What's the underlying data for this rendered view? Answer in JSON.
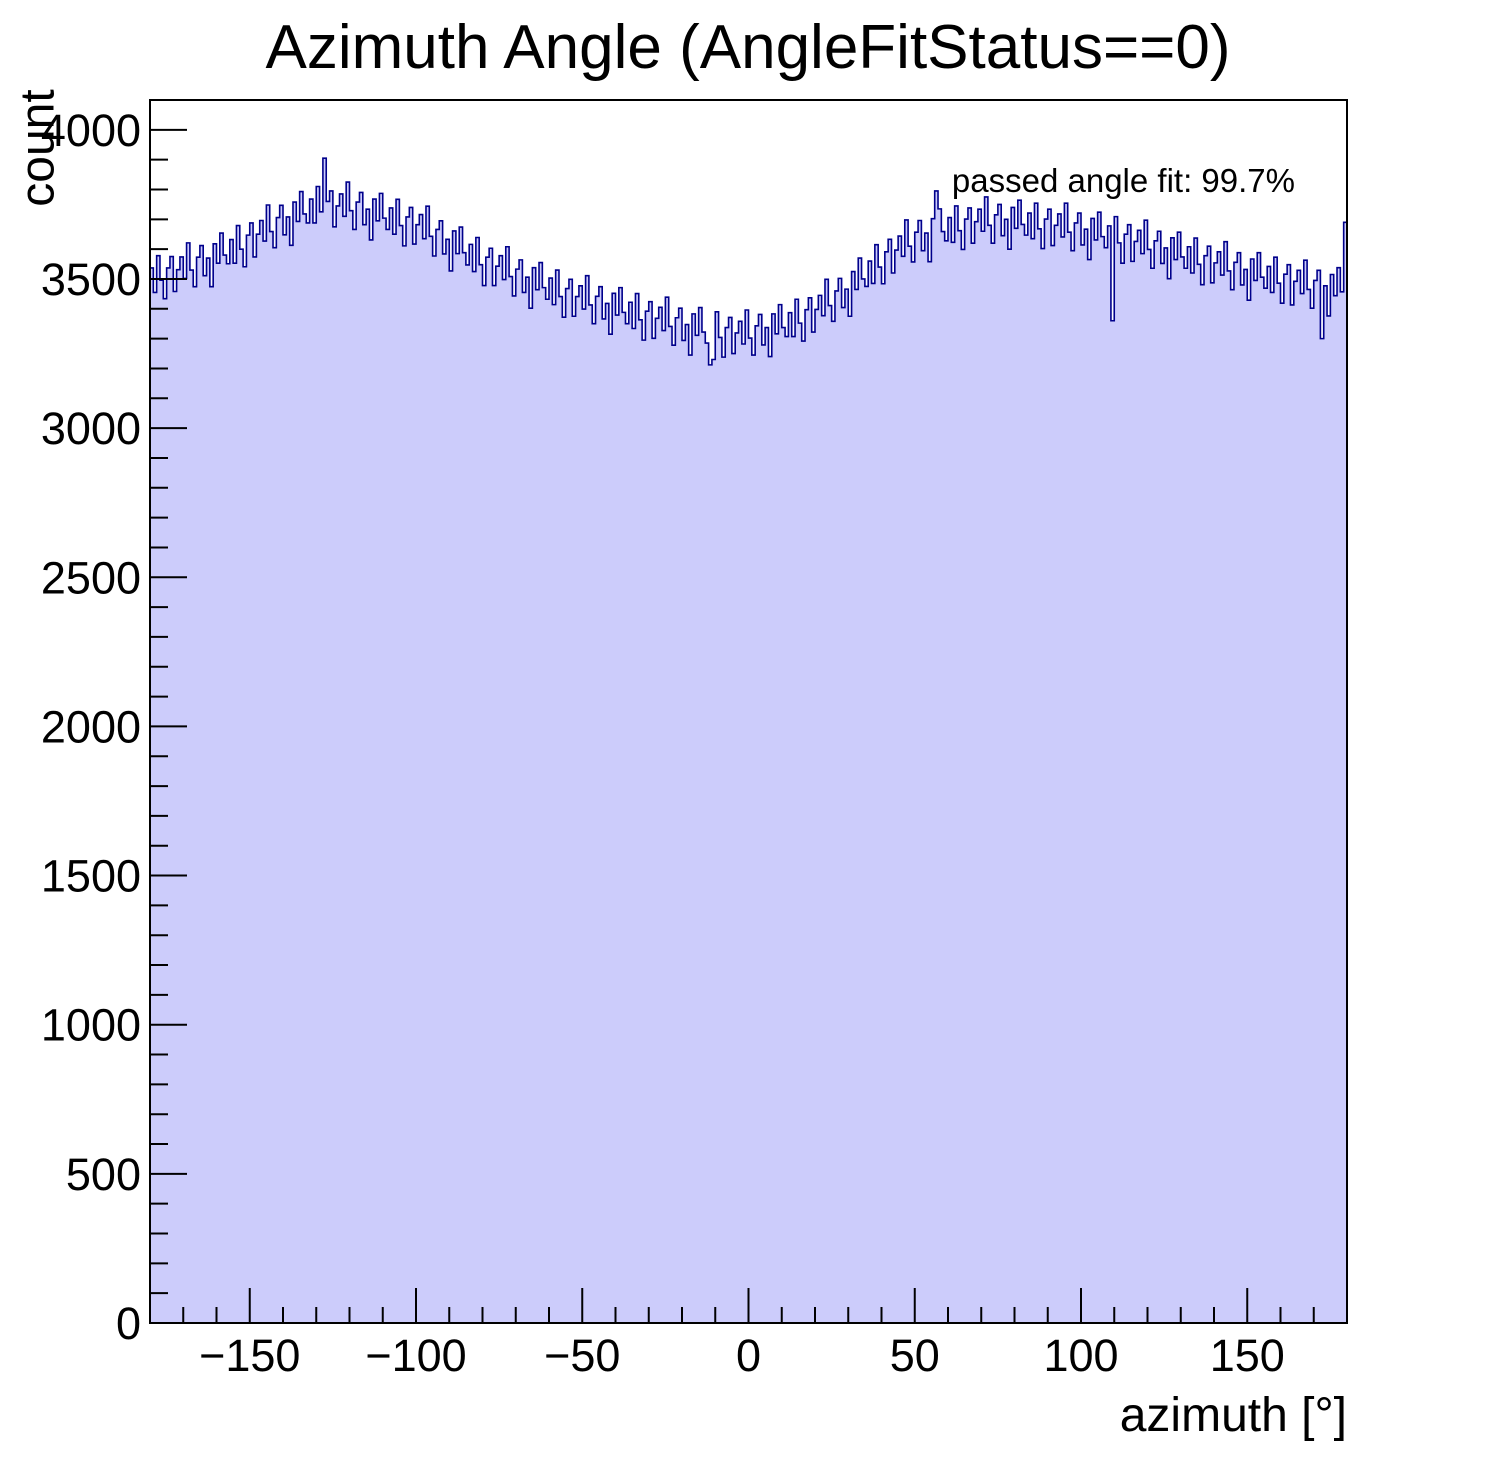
{
  "header": {
    "title": "Azimuth Angle (AngleFitStatus==0)"
  },
  "chart_data": {
    "type": "bar",
    "subtype": "filled-step-histogram",
    "title": "Azimuth Angle (AngleFitStatus==0)",
    "xlabel": "azimuth [°]",
    "ylabel": "count",
    "annotation": "passed angle fit: 99.7%",
    "xlim": [
      -180,
      180
    ],
    "ylim": [
      0,
      4100
    ],
    "n_bins": 360,
    "bin_width": 1,
    "x_major_ticks": [
      -150,
      -100,
      -50,
      0,
      50,
      100,
      150
    ],
    "x_minor_step": 10,
    "y_major_ticks": [
      0,
      500,
      1000,
      1500,
      2000,
      2500,
      3000,
      3500,
      4000
    ],
    "y_minor_step": 100,
    "grid": false,
    "legend_position": "none",
    "colors": {
      "fill": "#ccccfb",
      "line": "#00008b",
      "axis": "#000000"
    },
    "values": [
      3537,
      3455,
      3578,
      3496,
      3434,
      3537,
      3575,
      3458,
      3531,
      3574,
      3502,
      3621,
      3530,
      3474,
      3573,
      3612,
      3511,
      3570,
      3474,
      3618,
      3553,
      3654,
      3580,
      3551,
      3632,
      3553,
      3679,
      3600,
      3541,
      3647,
      3688,
      3574,
      3650,
      3696,
      3627,
      3748,
      3659,
      3605,
      3706,
      3747,
      3648,
      3708,
      3613,
      3758,
      3693,
      3793,
      3718,
      3688,
      3768,
      3688,
      3810,
      3725,
      3905,
      3760,
      3795,
      3675,
      3745,
      3785,
      3710,
      3825,
      3729,
      3666,
      3758,
      3790,
      3682,
      3734,
      3631,
      3768,
      3695,
      3787,
      3704,
      3666,
      3738,
      3650,
      3767,
      3679,
      3611,
      3708,
      3740,
      3617,
      3682,
      3716,
      3635,
      3744,
      3643,
      3577,
      3666,
      3695,
      3584,
      3633,
      3527,
      3661,
      3585,
      3674,
      3588,
      3547,
      3616,
      3525,
      3639,
      3548,
      3478,
      3573,
      3603,
      3478,
      3543,
      3578,
      3498,
      3608,
      3508,
      3443,
      3533,
      3564,
      3455,
      3506,
      3402,
      3538,
      3464,
      3555,
      3471,
      3432,
      3503,
      3414,
      3530,
      3441,
      3372,
      3468,
      3499,
      3375,
      3441,
      3477,
      3399,
      3511,
      3413,
      3350,
      3442,
      3474,
      3366,
      3418,
      3315,
      3452,
      3379,
      3471,
      3388,
      3350,
      3422,
      3334,
      3451,
      3363,
      3295,
      3392,
      3424,
      3301,
      3368,
      3405,
      3327,
      3439,
      3341,
      3278,
      3370,
      3402,
      3294,
      3347,
      3245,
      3383,
      3311,
      3404,
      3322,
      3285,
      3212,
      3230,
      3390,
      3304,
      3238,
      3337,
      3371,
      3250,
      3319,
      3358,
      3282,
      3396,
      3302,
      3245,
      3343,
      3381,
      3279,
      3337,
      3240,
      3383,
      3316,
      3414,
      3337,
      3307,
      3387,
      3307,
      3432,
      3352,
      3292,
      3397,
      3437,
      3322,
      3398,
      3445,
      3377,
      3499,
      3411,
      3358,
      3460,
      3502,
      3404,
      3466,
      3375,
      3525,
      3465,
      3570,
      3500,
      3475,
      3560,
      3485,
      3615,
      3540,
      3484,
      3591,
      3633,
      3520,
      3597,
      3644,
      3576,
      3698,
      3610,
      3557,
      3657,
      3696,
      3595,
      3654,
      3558,
      3702,
      3795,
      3735,
      3659,
      3628,
      3706,
      3623,
      3745,
      3662,
      3599,
      3701,
      3738,
      3620,
      3692,
      3734,
      3660,
      3775,
      3680,
      3620,
      3715,
      3750,
      3645,
      3700,
      3600,
      3740,
      3670,
      3764,
      3683,
      3647,
      3721,
      3635,
      3754,
      3668,
      3602,
      3701,
      3734,
      3612,
      3680,
      3718,
      3641,
      3754,
      3657,
      3595,
      3688,
      3721,
      3614,
      3667,
      3565,
      3703,
      3631,
      3724,
      3642,
      3605,
      3678,
      3360,
      3709,
      3621,
      3553,
      3650,
      3682,
      3559,
      3626,
      3663,
      3585,
      3697,
      3599,
      3536,
      3628,
      3660,
      3552,
      3604,
      3501,
      3638,
      3565,
      3657,
      3574,
      3536,
      3608,
      3520,
      3637,
      3549,
      3481,
      3578,
      3610,
      3487,
      3554,
      3591,
      3513,
      3625,
      3527,
      3464,
      3556,
      3588,
      3480,
      3532,
      3429,
      3567,
      3495,
      3588,
      3506,
      3469,
      3542,
      3455,
      3573,
      3486,
      3419,
      3516,
      3548,
      3413,
      3492,
      3529,
      3451,
      3563,
      3465,
      3402,
      3495,
      3529,
      3300,
      3477,
      3376,
      3515,
      3444,
      3538,
      3457,
      3690
    ]
  }
}
